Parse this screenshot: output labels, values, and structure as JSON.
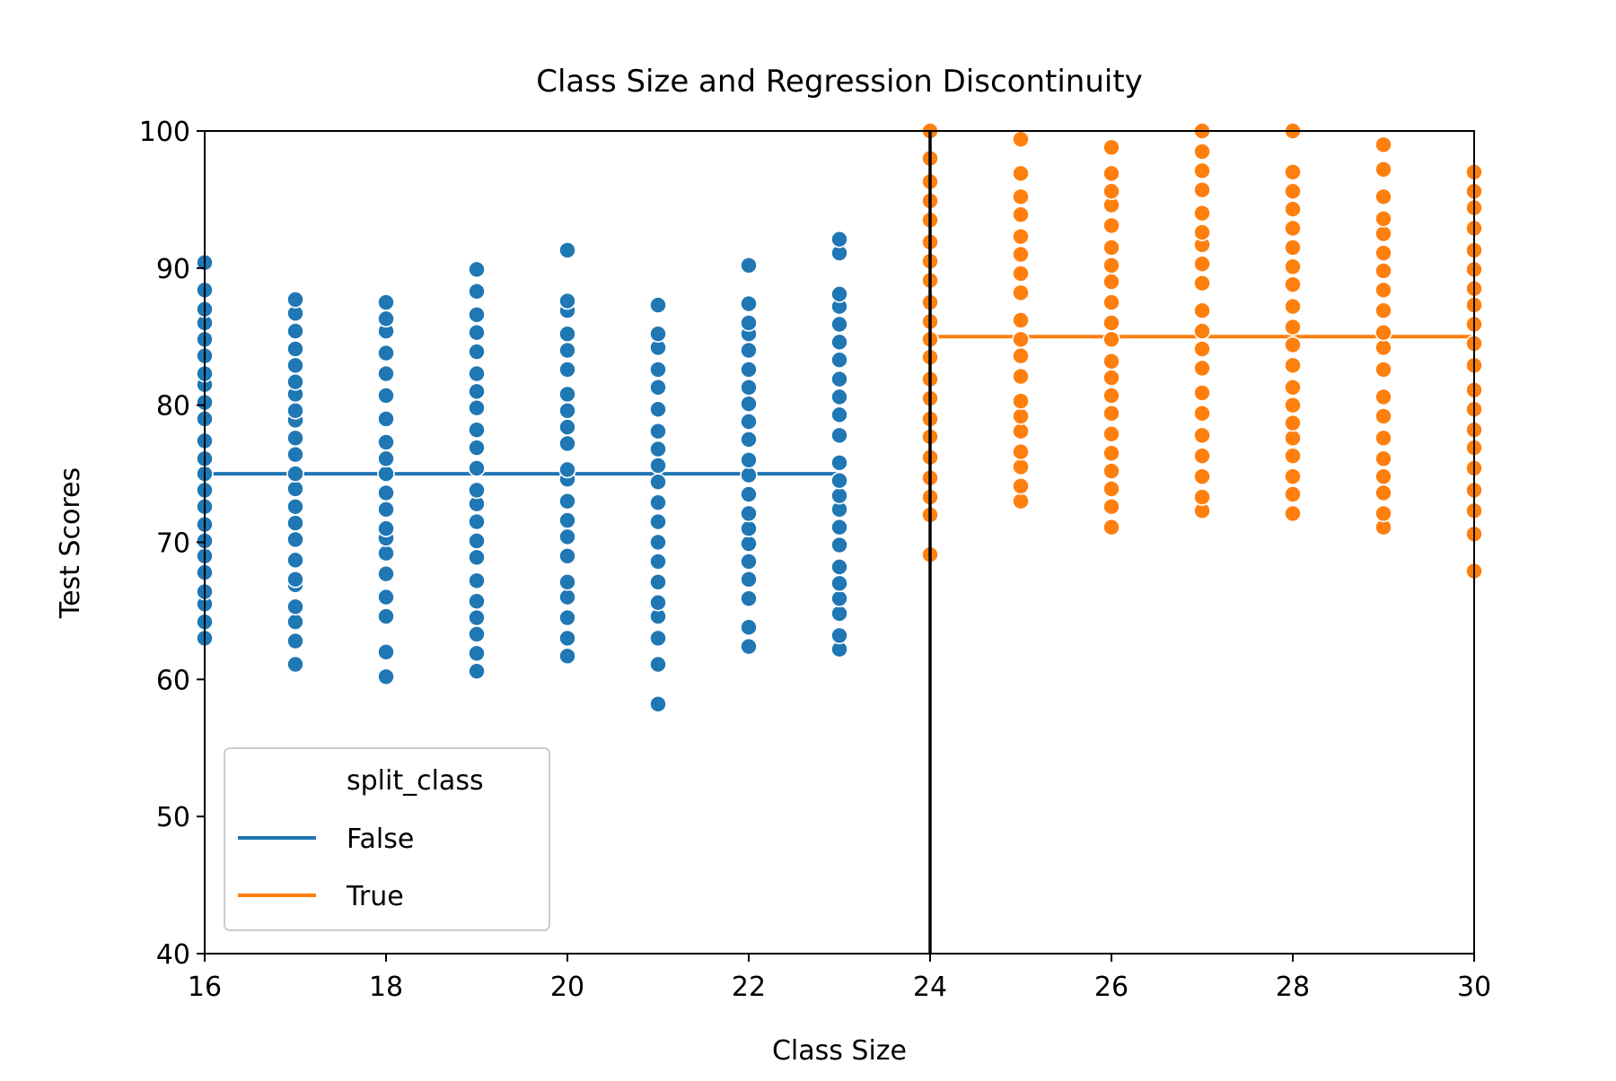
{
  "chart_data": {
    "type": "scatter",
    "title": "Class Size and Regression Discontinuity",
    "xlabel": "Class Size",
    "ylabel": "Test Scores",
    "xlim": [
      16,
      30
    ],
    "ylim": [
      40,
      100
    ],
    "xticks": [
      "16",
      "18",
      "20",
      "22",
      "24",
      "26",
      "28",
      "30"
    ],
    "yticks": [
      "40",
      "50",
      "60",
      "70",
      "80",
      "90",
      "100"
    ],
    "grid": false,
    "cutoff_line_x": 24,
    "legend": {
      "title": "split_class",
      "placement": "lower-left",
      "entries": [
        {
          "label": "False",
          "color": "#1f77b4"
        },
        {
          "label": "True",
          "color": "#ff7f0e"
        }
      ]
    },
    "series": [
      {
        "name": "False",
        "color": "#1f77b4",
        "fit_line": {
          "x_start": 16,
          "x_end": 23,
          "y": 75
        },
        "points": [
          {
            "x": 16,
            "y": [
              63.0,
              64.2,
              65.5,
              66.4,
              67.8,
              69.0,
              70.1,
              71.3,
              72.6,
              73.8,
              75.0,
              76.1,
              77.4,
              79.0,
              80.2,
              81.5,
              82.3,
              83.6,
              84.8,
              86.0,
              87.0,
              88.4,
              90.4
            ]
          },
          {
            "x": 17,
            "y": [
              61.1,
              62.8,
              64.2,
              65.3,
              66.9,
              67.3,
              68.7,
              70.2,
              71.4,
              72.6,
              73.9,
              75.0,
              76.4,
              77.6,
              78.9,
              79.6,
              80.8,
              81.7,
              82.9,
              84.1,
              85.4,
              86.7,
              87.7
            ]
          },
          {
            "x": 18,
            "y": [
              60.2,
              62.0,
              64.6,
              66.0,
              67.7,
              69.2,
              70.3,
              71.0,
              72.4,
              73.6,
              75.0,
              76.1,
              77.3,
              79.0,
              80.7,
              82.3,
              83.8,
              85.4,
              86.3,
              87.5
            ]
          },
          {
            "x": 19,
            "y": [
              60.6,
              61.9,
              63.3,
              64.5,
              65.7,
              67.2,
              68.9,
              70.1,
              71.5,
              72.8,
              73.8,
              75.4,
              76.9,
              78.2,
              79.8,
              81.0,
              82.3,
              83.9,
              85.3,
              86.6,
              88.3,
              89.9
            ]
          },
          {
            "x": 20,
            "y": [
              61.7,
              63.0,
              64.5,
              66.0,
              67.1,
              69.0,
              70.4,
              71.6,
              73.0,
              74.6,
              75.3,
              77.2,
              78.4,
              79.6,
              80.8,
              82.6,
              84.0,
              85.2,
              86.9,
              87.6,
              91.3
            ]
          },
          {
            "x": 21,
            "y": [
              58.2,
              61.1,
              63.0,
              64.6,
              65.6,
              67.1,
              68.6,
              70.0,
              71.5,
              72.9,
              74.4,
              75.6,
              76.8,
              78.1,
              79.7,
              81.3,
              82.6,
              84.2,
              85.2,
              87.3
            ]
          },
          {
            "x": 22,
            "y": [
              62.4,
              63.8,
              65.9,
              67.3,
              68.6,
              69.9,
              71.0,
              72.1,
              73.5,
              74.9,
              76.0,
              77.5,
              78.8,
              80.1,
              81.3,
              82.6,
              84.0,
              85.2,
              86.0,
              87.4,
              90.2
            ]
          },
          {
            "x": 23,
            "y": [
              62.2,
              63.2,
              64.8,
              65.9,
              67.0,
              68.2,
              69.8,
              71.1,
              72.4,
              73.4,
              74.5,
              75.8,
              77.8,
              79.3,
              80.6,
              81.9,
              83.3,
              84.6,
              85.9,
              87.2,
              88.1,
              91.1,
              92.1
            ]
          }
        ]
      },
      {
        "name": "True",
        "color": "#ff7f0e",
        "fit_line": {
          "x_start": 24,
          "x_end": 30,
          "y": 85
        },
        "points": [
          {
            "x": 24,
            "y": [
              69.1,
              72.0,
              73.3,
              74.7,
              76.2,
              77.7,
              79.0,
              80.5,
              81.9,
              83.5,
              84.8,
              86.1,
              87.5,
              89.1,
              90.5,
              91.9,
              93.5,
              94.9,
              96.3,
              98.0,
              100.0
            ]
          },
          {
            "x": 25,
            "y": [
              73.0,
              74.1,
              75.5,
              76.6,
              78.1,
              79.2,
              80.3,
              82.1,
              83.6,
              84.8,
              86.2,
              88.2,
              89.6,
              91.0,
              92.3,
              93.9,
              95.2,
              96.9,
              99.4
            ]
          },
          {
            "x": 26,
            "y": [
              71.1,
              72.6,
              73.9,
              75.2,
              76.5,
              77.9,
              79.4,
              80.7,
              82.0,
              83.2,
              84.8,
              86.0,
              87.5,
              89.0,
              90.2,
              91.5,
              93.1,
              94.6,
              95.6,
              96.9,
              98.8
            ]
          },
          {
            "x": 27,
            "y": [
              72.3,
              73.3,
              74.8,
              76.3,
              77.8,
              79.4,
              80.9,
              82.7,
              84.1,
              85.4,
              86.9,
              88.9,
              90.3,
              91.7,
              92.6,
              94.0,
              95.7,
              97.1,
              98.5,
              100.0
            ]
          },
          {
            "x": 28,
            "y": [
              72.1,
              73.5,
              74.8,
              76.3,
              77.6,
              78.7,
              80.0,
              81.3,
              82.9,
              84.4,
              85.7,
              87.2,
              88.8,
              90.1,
              91.5,
              92.9,
              94.3,
              95.6,
              97.0,
              100.0
            ]
          },
          {
            "x": 29,
            "y": [
              71.1,
              72.1,
              73.6,
              74.8,
              76.1,
              77.6,
              79.2,
              80.6,
              82.6,
              84.2,
              85.3,
              86.9,
              88.4,
              89.8,
              91.1,
              92.5,
              93.6,
              95.2,
              97.2,
              99.0
            ]
          },
          {
            "x": 30,
            "y": [
              67.9,
              70.6,
              72.3,
              73.8,
              75.4,
              76.9,
              78.2,
              79.7,
              81.1,
              82.9,
              84.5,
              85.9,
              87.3,
              88.5,
              89.9,
              91.3,
              92.9,
              94.4,
              95.6,
              97.0
            ]
          }
        ]
      }
    ]
  }
}
